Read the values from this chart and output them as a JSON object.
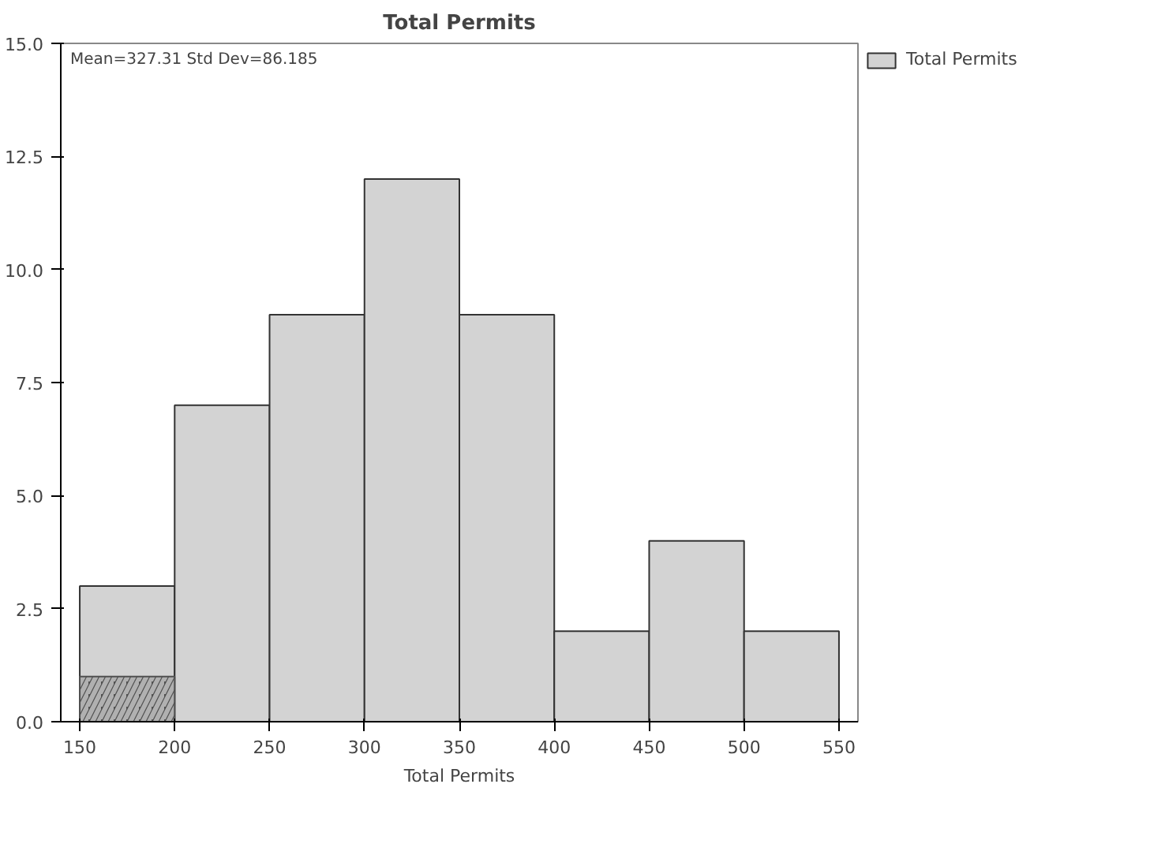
{
  "chart_data": {
    "type": "histogram",
    "title": "Total Permits",
    "xlabel": "Total Permits",
    "bins": [
      150,
      200,
      250,
      300,
      350,
      400,
      450,
      500,
      550
    ],
    "series": [
      {
        "name": "Total Permits",
        "color": "#d3d3d3",
        "values": [
          3,
          7,
          9,
          12,
          9,
          2,
          4,
          2
        ]
      },
      {
        "color": "#505050",
        "values": [
          1,
          0,
          0,
          0,
          0,
          0,
          0,
          0
        ]
      }
    ],
    "xlim": [
      140,
      560
    ],
    "ylim": [
      0,
      15
    ],
    "xticks": [
      150,
      200,
      250,
      300,
      350,
      400,
      450,
      500,
      550
    ],
    "yticks": [
      {
        "value": 0,
        "label": "0.0"
      },
      {
        "value": 2.5,
        "label": "2.5"
      },
      {
        "value": 5,
        "label": "5.0"
      },
      {
        "value": 7.5,
        "label": "7.5"
      },
      {
        "value": 10,
        "label": "10.0"
      },
      {
        "value": 12.5,
        "label": "12.5"
      },
      {
        "value": 15,
        "label": "15.0"
      }
    ],
    "annotations": [
      "Mean=327.31  Std Dev=86.185"
    ],
    "legend": "top right",
    "grid": false
  }
}
